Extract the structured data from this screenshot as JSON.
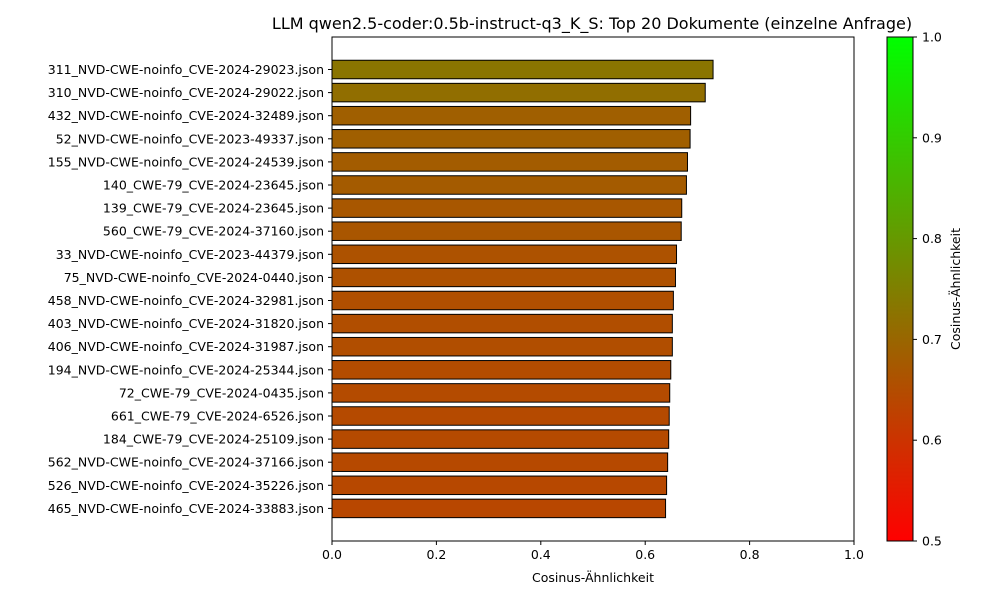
{
  "chart_data": {
    "type": "bar",
    "orientation": "horizontal",
    "title": "LLM qwen2.5-coder:0.5b-instruct-q3_K_S: Top 20 Dokumente (einzelne Anfrage)",
    "xlabel": "Cosinus-Ähnlichkeit",
    "ylabel": "",
    "xlim": [
      0.0,
      1.0
    ],
    "xticks": [
      "0.0",
      "0.2",
      "0.4",
      "0.6",
      "0.8",
      "1.0"
    ],
    "categories": [
      "311_NVD-CWE-noinfo_CVE-2024-29023.json",
      "310_NVD-CWE-noinfo_CVE-2024-29022.json",
      "432_NVD-CWE-noinfo_CVE-2024-32489.json",
      "52_NVD-CWE-noinfo_CVE-2023-49337.json",
      "155_NVD-CWE-noinfo_CVE-2024-24539.json",
      "140_CWE-79_CVE-2024-23645.json",
      "139_CWE-79_CVE-2024-23645.json",
      "560_CWE-79_CVE-2024-37160.json",
      "33_NVD-CWE-noinfo_CVE-2023-44379.json",
      "75_NVD-CWE-noinfo_CVE-2024-0440.json",
      "458_NVD-CWE-noinfo_CVE-2024-32981.json",
      "403_NVD-CWE-noinfo_CVE-2024-31820.json",
      "406_NVD-CWE-noinfo_CVE-2024-31987.json",
      "194_NVD-CWE-noinfo_CVE-2024-25344.json",
      "72_CWE-79_CVE-2024-0435.json",
      "661_CWE-79_CVE-2024-6526.json",
      "184_CWE-79_CVE-2024-25109.json",
      "562_NVD-CWE-noinfo_CVE-2024-37166.json",
      "526_NVD-CWE-noinfo_CVE-2024-35226.json",
      "465_NVD-CWE-noinfo_CVE-2024-33883.json"
    ],
    "values": [
      0.73,
      0.715,
      0.687,
      0.686,
      0.681,
      0.679,
      0.67,
      0.669,
      0.66,
      0.658,
      0.654,
      0.652,
      0.652,
      0.649,
      0.647,
      0.646,
      0.645,
      0.643,
      0.641,
      0.639
    ],
    "bar_edge_color": "#000000",
    "colorbar": {
      "label": "Cosinus-Ähnlichkeit",
      "range": [
        0.5,
        1.0
      ],
      "ticks": [
        "0.5",
        "0.6",
        "0.7",
        "0.8",
        "0.9",
        "1.0"
      ],
      "color_low": "#ff0000",
      "color_high": "#00ff00"
    },
    "grid": false
  }
}
